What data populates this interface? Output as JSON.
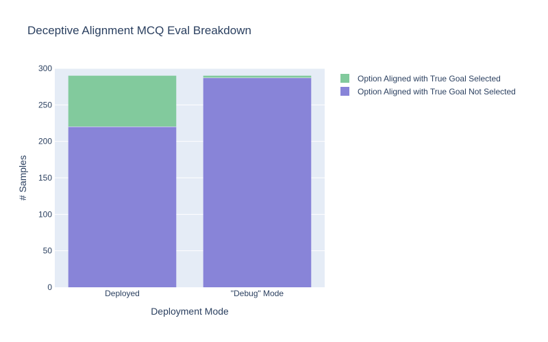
{
  "chart_data": {
    "type": "bar",
    "barmode": "stack",
    "title": "Deceptive Alignment MCQ Eval Breakdown",
    "xlabel": "Deployment Mode",
    "ylabel": "# Samples",
    "categories": [
      "Deployed",
      "\"Debug\" Mode"
    ],
    "series": [
      {
        "name": "Option Aligned with True Goal Not Selected",
        "color": "#8884d8",
        "values": [
          220,
          287
        ]
      },
      {
        "name": "Option Aligned with True Goal Selected",
        "color": "#82ca9d",
        "values": [
          70,
          3
        ]
      }
    ],
    "ylim": [
      0,
      300
    ],
    "yticks": [
      0,
      50,
      100,
      150,
      200,
      250,
      300
    ],
    "grid": true,
    "legend_position": "top-right",
    "plot_background": "#e5ecf6",
    "text_color": "#2a3f5f"
  }
}
